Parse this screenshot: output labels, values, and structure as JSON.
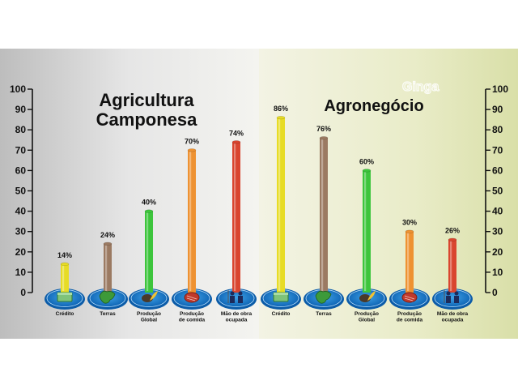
{
  "chart_data": [
    {
      "type": "bar",
      "title": [
        "Agricultura",
        "Camponesa"
      ],
      "categories": [
        [
          "Crédito"
        ],
        [
          "Terras"
        ],
        [
          "Produção",
          "Global"
        ],
        [
          "Produção",
          "de comida"
        ],
        [
          "Mão de obra",
          "ocupada"
        ]
      ],
      "values": [
        14,
        24,
        40,
        70,
        74
      ],
      "labels": [
        "14%",
        "24%",
        "40%",
        "70%",
        "74%"
      ],
      "ylim": [
        0,
        100
      ],
      "yticks": [
        "0",
        "10",
        "20",
        "30",
        "40",
        "50",
        "60",
        "70",
        "80",
        "90",
        "100"
      ],
      "icons": [
        "money-icon",
        "map-icon",
        "harvest-icon",
        "meat-icon",
        "workers-icon"
      ]
    },
    {
      "type": "bar",
      "title": [
        "Agronegócio"
      ],
      "categories": [
        [
          "Crédito"
        ],
        [
          "Terras"
        ],
        [
          "Produção",
          "Global"
        ],
        [
          "Produção",
          "de comida"
        ],
        [
          "Mão de obra",
          "ocupada"
        ]
      ],
      "values": [
        86,
        76,
        60,
        30,
        26
      ],
      "labels": [
        "86%",
        "76%",
        "60%",
        "30%",
        "26%"
      ],
      "ylim": [
        0,
        100
      ],
      "yticks": [
        "0",
        "10",
        "20",
        "30",
        "40",
        "50",
        "60",
        "70",
        "80",
        "90",
        "100"
      ],
      "icons": [
        "money-icon",
        "map-icon",
        "harvest-icon",
        "meat-icon",
        "workers-icon"
      ]
    }
  ],
  "bar_colors": [
    "#e7dc26",
    "#9b7a62",
    "#3dc53c",
    "#ee9232",
    "#d9452f"
  ],
  "logo_text": "Ginga"
}
